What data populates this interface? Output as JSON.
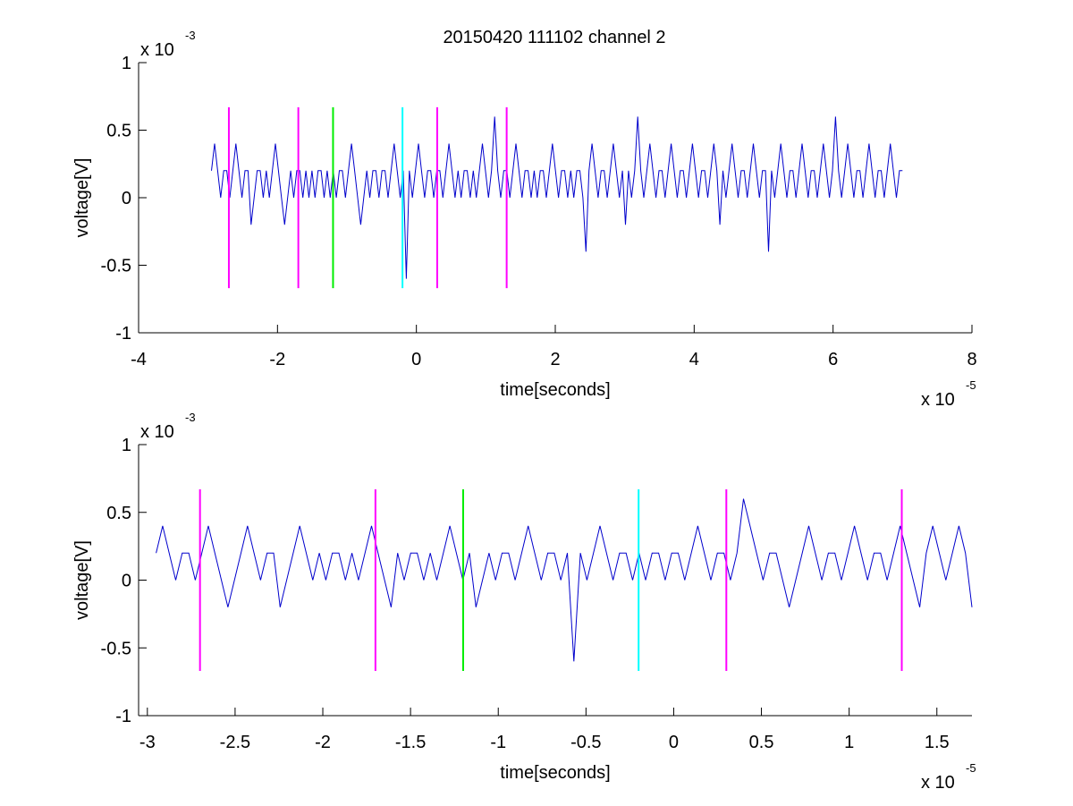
{
  "title": "20150420 111102 channel 2",
  "chart_data": [
    {
      "type": "line",
      "xlabel": "time[seconds]",
      "ylabel": "voltage[V]",
      "x_exponent_label": "x 10",
      "x_exponent": "-5",
      "y_exponent_label": "x 10",
      "y_exponent": "-3",
      "xlim": [
        -4,
        8
      ],
      "ylim": [
        -1,
        1
      ],
      "xticks": [
        "-4",
        "-2",
        "0",
        "2",
        "4",
        "6",
        "8"
      ],
      "yticks": [
        "-1",
        "-0.5",
        "0",
        "0.5",
        "1"
      ],
      "signal": {
        "color": "#0000cc",
        "x_start": -2.95,
        "x_end": 7.0,
        "levels": [
          0.2,
          0.4,
          0.2,
          0.0,
          0.2,
          0.2,
          0.0,
          0.2,
          0.4,
          0.2,
          0.0,
          0.2,
          0.2,
          -0.2,
          0.0,
          0.2,
          0.2,
          0.0,
          0.2,
          0.0,
          0.2,
          0.4,
          0.2,
          0.0,
          -0.2,
          0.0,
          0.2,
          0.0,
          0.2,
          0.2,
          0.0,
          0.2,
          0.0,
          0.2,
          0.0,
          0.2,
          0.2,
          0.0,
          0.2,
          0.0,
          0.2,
          0.0,
          0.2,
          0.2,
          0.0,
          0.2,
          0.4,
          0.2,
          0.0,
          -0.2,
          0.0,
          0.2,
          0.0,
          0.2,
          0.2,
          0.0,
          0.2,
          0.2,
          0.0,
          0.2,
          0.4,
          0.2,
          0.0,
          0.2,
          -0.6,
          0.2,
          0.0,
          0.2,
          0.4,
          0.2,
          0.0,
          0.2,
          0.2,
          0.0,
          0.2,
          0.2,
          0.0,
          0.2,
          0.4,
          0.2,
          0.0,
          0.2,
          0.0,
          0.2,
          0.2,
          0.0,
          0.2,
          0.0,
          0.2,
          0.4,
          0.2,
          0.0,
          0.2,
          0.6,
          0.2,
          0.0,
          0.2,
          0.2,
          0.0,
          0.2,
          0.4,
          0.2,
          0.0,
          0.2,
          0.2,
          0.0,
          0.2,
          0.0,
          0.2,
          0.2,
          0.0,
          0.2,
          0.4,
          0.2,
          0.0,
          0.2,
          0.2,
          0.0,
          0.2,
          0.0,
          0.2,
          0.2,
          0.0,
          -0.4,
          0.2,
          0.4,
          0.2,
          0.0,
          0.2,
          0.2,
          0.0,
          0.2,
          0.4,
          0.2,
          0.0,
          0.2,
          -0.2,
          0.2,
          0.0,
          0.2,
          0.6,
          0.2,
          0.0,
          0.2,
          0.4,
          0.2,
          0.0,
          0.2,
          0.2,
          0.0,
          0.2,
          0.4,
          0.2,
          0.0,
          0.2,
          0.2,
          0.0,
          0.2,
          0.4,
          0.2,
          0.0,
          0.2,
          0.2,
          0.0,
          0.2,
          0.4,
          0.2,
          -0.2,
          0.2,
          0.0,
          0.2,
          0.4,
          0.2,
          0.0,
          0.2,
          0.2,
          0.0,
          0.2,
          0.4,
          0.2,
          0.0,
          0.2,
          0.2,
          -0.4,
          0.2,
          0.0,
          0.2,
          0.4,
          0.2,
          0.0,
          0.2,
          0.2,
          0.0,
          0.2,
          0.4,
          0.2,
          0.0,
          0.2,
          0.2,
          0.0,
          0.2,
          0.4,
          0.2,
          0.0,
          0.2,
          0.6,
          0.2,
          0.0,
          0.2,
          0.4,
          0.2,
          0.0,
          0.2,
          0.2,
          0.0,
          0.2,
          0.4,
          0.2,
          0.0,
          0.2,
          0.2,
          0.0,
          0.2,
          0.4,
          0.2,
          0.0,
          0.2,
          0.2
        ]
      },
      "markers": [
        {
          "x": -2.7,
          "color": "#ff00ff",
          "y_range": [
            -0.67,
            0.67
          ]
        },
        {
          "x": -1.7,
          "color": "#ff00ff",
          "y_range": [
            -0.67,
            0.67
          ]
        },
        {
          "x": -1.2,
          "color": "#00ee00",
          "y_range": [
            -0.67,
            0.67
          ]
        },
        {
          "x": -0.2,
          "color": "#00ffff",
          "y_range": [
            -0.67,
            0.67
          ]
        },
        {
          "x": 0.3,
          "color": "#ff00ff",
          "y_range": [
            -0.67,
            0.67
          ]
        },
        {
          "x": 1.3,
          "color": "#ff00ff",
          "y_range": [
            -0.67,
            0.67
          ]
        }
      ]
    },
    {
      "type": "line",
      "xlabel": "time[seconds]",
      "ylabel": "voltage[V]",
      "x_exponent_label": "x 10",
      "x_exponent": "-5",
      "y_exponent_label": "x 10",
      "y_exponent": "-3",
      "xlim": [
        -3.05,
        1.7
      ],
      "ylim": [
        -1,
        1
      ],
      "xticks": [
        "-3",
        "-2.5",
        "-2",
        "-1.5",
        "-1",
        "-0.5",
        "0",
        "0.5",
        "1",
        "1.5"
      ],
      "xtick_values": [
        -3,
        -2.5,
        -2,
        -1.5,
        -1,
        -0.5,
        0,
        0.5,
        1,
        1.5
      ],
      "yticks": [
        "-1",
        "-0.5",
        "0",
        "0.5",
        "1"
      ],
      "signal": {
        "color": "#0000cc",
        "x_start": -2.95,
        "x_end": 1.7,
        "levels": [
          0.2,
          0.4,
          0.2,
          0.0,
          0.2,
          0.2,
          0.0,
          0.2,
          0.4,
          0.2,
          0.0,
          -0.2,
          0.0,
          0.2,
          0.4,
          0.2,
          0.0,
          0.2,
          0.2,
          -0.2,
          0.0,
          0.2,
          0.4,
          0.2,
          0.0,
          0.2,
          0.0,
          0.2,
          0.2,
          0.0,
          0.2,
          0.0,
          0.2,
          0.4,
          0.2,
          0.0,
          -0.2,
          0.2,
          0.0,
          0.2,
          0.2,
          0.0,
          0.2,
          0.0,
          0.2,
          0.4,
          0.2,
          0.0,
          0.2,
          -0.2,
          0.0,
          0.2,
          0.0,
          0.2,
          0.2,
          0.0,
          0.2,
          0.4,
          0.2,
          0.0,
          0.2,
          0.2,
          0.0,
          0.2,
          -0.6,
          0.2,
          0.0,
          0.2,
          0.4,
          0.2,
          0.0,
          0.2,
          0.2,
          0.0,
          0.2,
          0.0,
          0.2,
          0.2,
          0.0,
          0.2,
          0.2,
          0.0,
          0.2,
          0.4,
          0.2,
          0.0,
          0.2,
          0.2,
          0.0,
          0.2,
          0.6,
          0.4,
          0.2,
          0.0,
          0.2,
          0.2,
          0.0,
          -0.2,
          0.0,
          0.2,
          0.4,
          0.2,
          0.0,
          0.2,
          0.2,
          0.0,
          0.2,
          0.4,
          0.2,
          0.0,
          0.2,
          0.2,
          0.0,
          0.2,
          0.4,
          0.2,
          0.0,
          -0.2,
          0.2,
          0.4,
          0.2,
          0.0,
          0.2,
          0.4,
          0.2,
          -0.2
        ]
      },
      "markers": [
        {
          "x": -2.7,
          "color": "#ff00ff",
          "y_range": [
            -0.67,
            0.67
          ]
        },
        {
          "x": -1.7,
          "color": "#ff00ff",
          "y_range": [
            -0.67,
            0.67
          ]
        },
        {
          "x": -1.2,
          "color": "#00ee00",
          "y_range": [
            -0.67,
            0.67
          ]
        },
        {
          "x": -0.2,
          "color": "#00ffff",
          "y_range": [
            -0.67,
            0.67
          ]
        },
        {
          "x": 0.3,
          "color": "#ff00ff",
          "y_range": [
            -0.67,
            0.67
          ]
        },
        {
          "x": 1.3,
          "color": "#ff00ff",
          "y_range": [
            -0.67,
            0.67
          ]
        }
      ]
    }
  ]
}
